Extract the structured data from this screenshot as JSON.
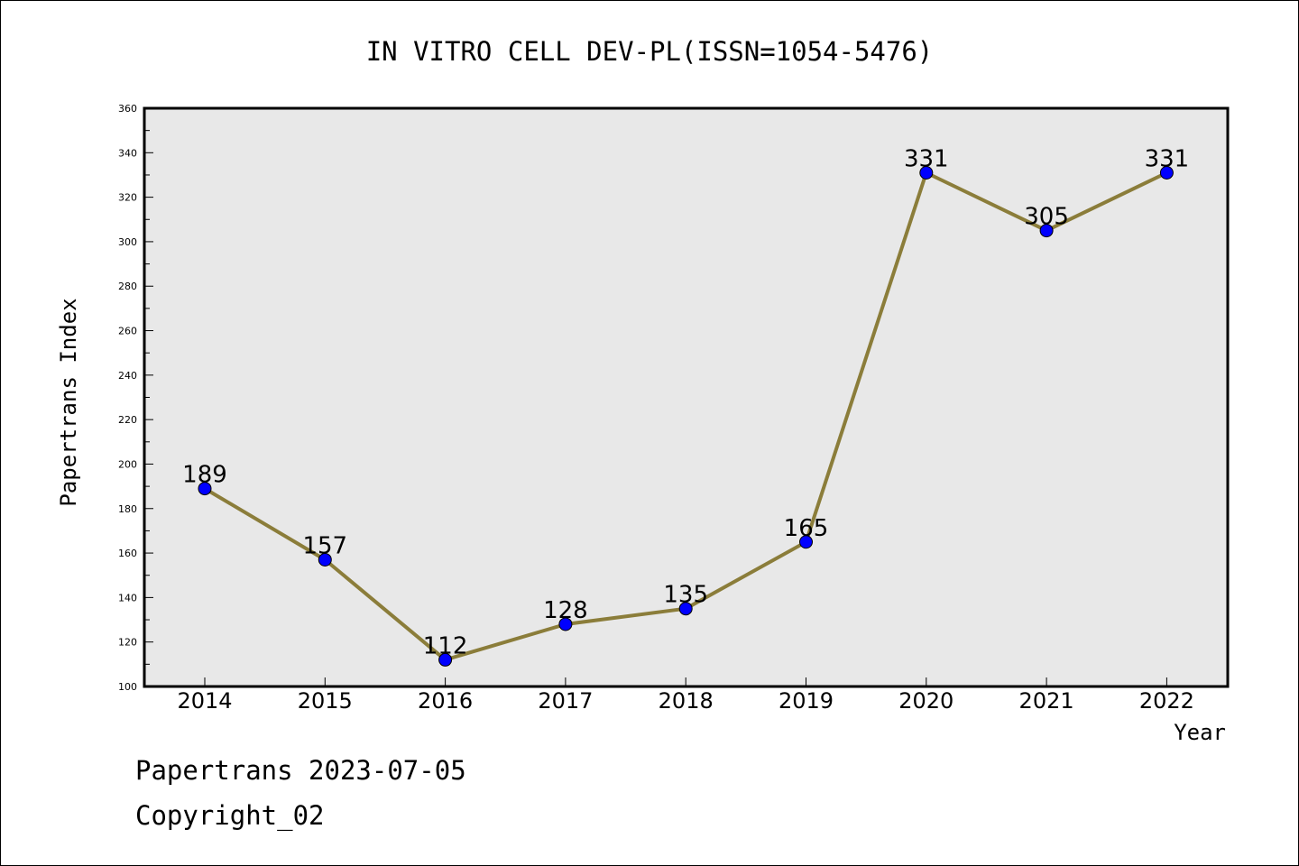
{
  "chart_data": {
    "type": "line",
    "title": "IN VITRO CELL DEV-PL(ISSN=1054-5476)",
    "xlabel": "Year",
    "ylabel": "Papertrans Index",
    "categories": [
      "2014",
      "2015",
      "2016",
      "2017",
      "2018",
      "2019",
      "2020",
      "2021",
      "2022"
    ],
    "series": [
      {
        "values": [
          189,
          157,
          112,
          128,
          135,
          165,
          331,
          305,
          331
        ]
      }
    ],
    "ylim": [
      100,
      360
    ],
    "yticks": [
      100,
      120,
      140,
      160,
      180,
      200,
      220,
      240,
      260,
      280,
      300,
      320,
      340,
      360
    ],
    "colors": {
      "line": "#8b7d3a",
      "marker": "#0000ff",
      "plot_bg": "#e8e8e8"
    },
    "data_labels": true,
    "grid": false,
    "legend": "none"
  },
  "footer": {
    "stamp": "Papertrans 2023-07-05",
    "copyright": "Copyright_02"
  }
}
